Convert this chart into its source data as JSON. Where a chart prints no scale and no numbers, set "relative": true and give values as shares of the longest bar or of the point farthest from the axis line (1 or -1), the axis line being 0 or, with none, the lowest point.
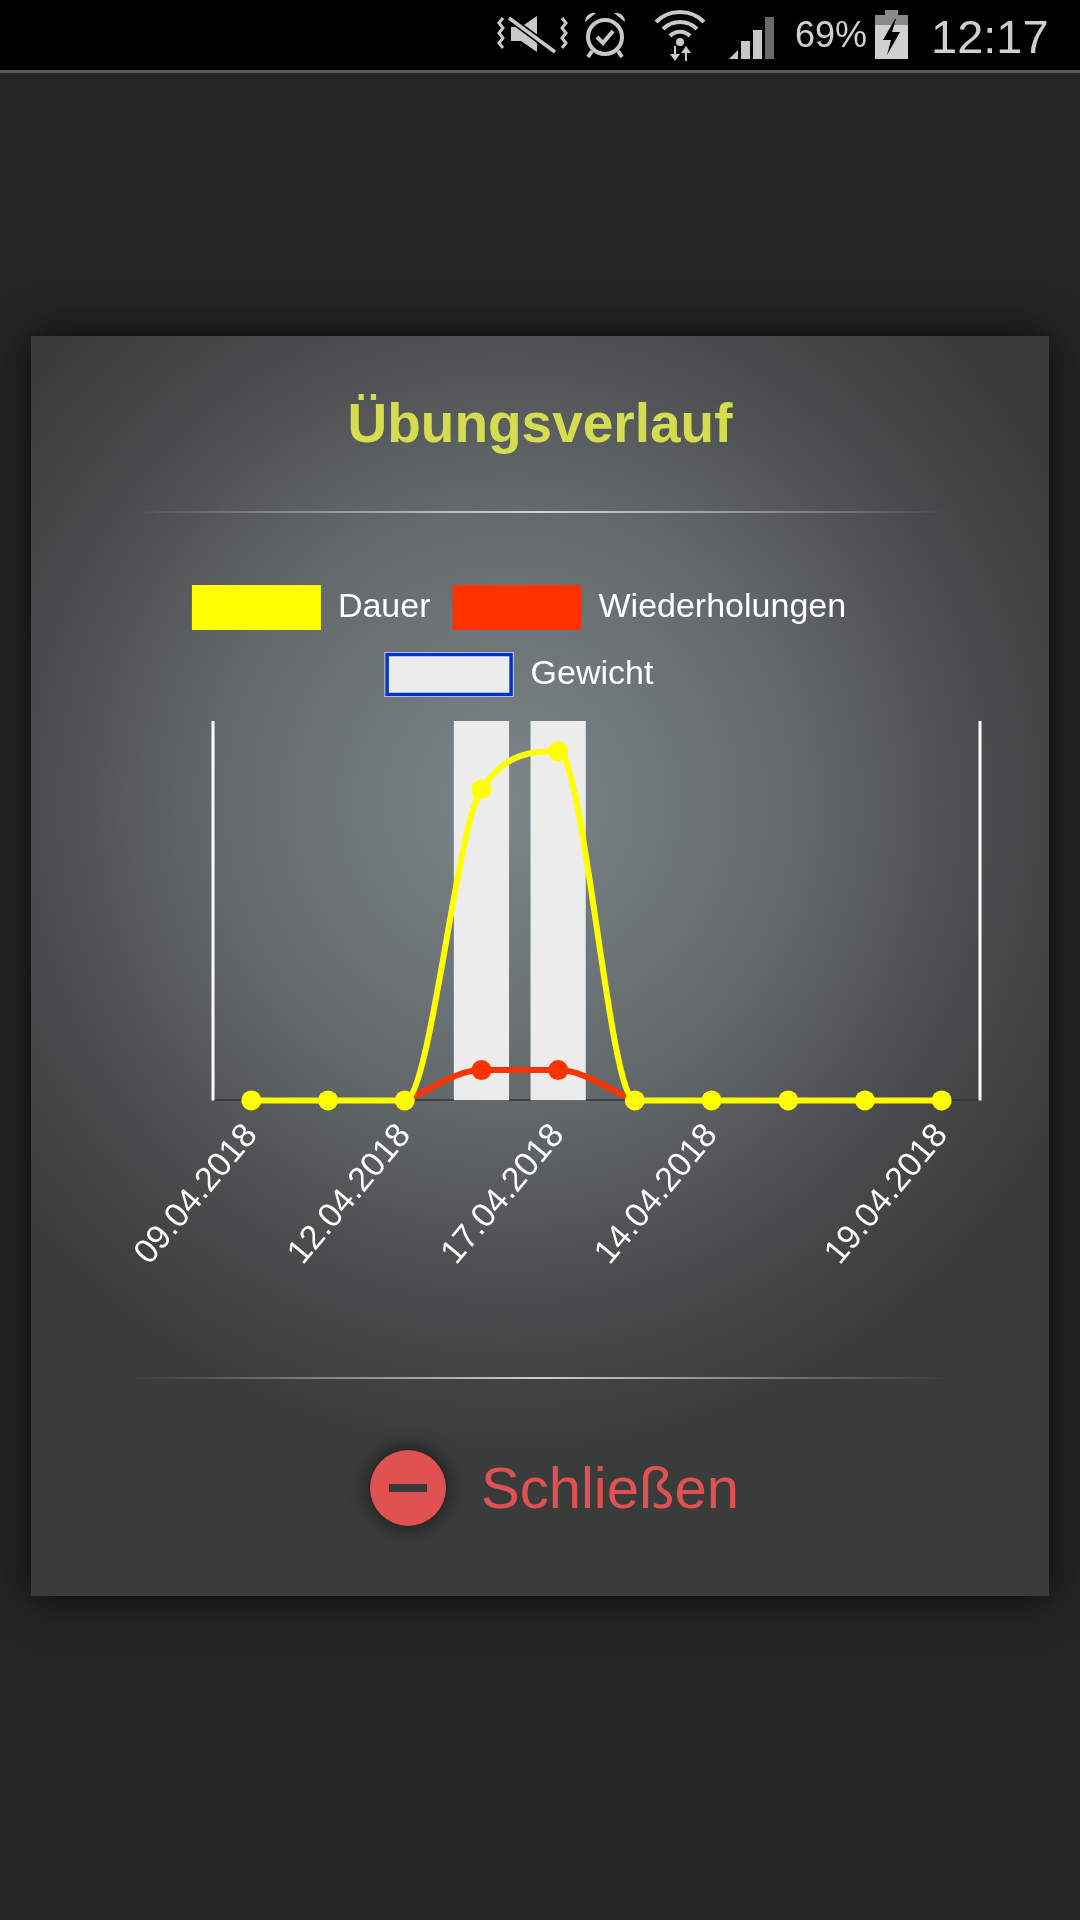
{
  "chart_data": {
    "type": "line",
    "title": "Übungsverlauf",
    "categories": [
      "09.04.2018",
      null,
      "12.04.2018",
      null,
      "17.04.2018",
      null,
      "14.04.2018",
      null,
      null,
      "19.04.2018"
    ],
    "series": [
      {
        "name": "Dauer",
        "color": "#ffff00",
        "values": [
          0,
          0,
          0,
          0.82,
          0.92,
          0,
          0,
          0,
          0,
          0
        ]
      },
      {
        "name": "Wiederholungen",
        "color": "#ff3300",
        "values": [
          null,
          null,
          0,
          0.08,
          0.08,
          0,
          null,
          null,
          null,
          null
        ]
      },
      {
        "name": "Gewicht",
        "type": "bar",
        "color": "#ececec",
        "values": [
          null,
          null,
          null,
          1,
          1,
          null,
          null,
          null,
          null,
          null
        ]
      }
    ],
    "relative": true,
    "legend": "top",
    "marker": "circle",
    "line_style": "solid",
    "annotations": [
      "69%",
      "12:17",
      "Schließen"
    ]
  }
}
